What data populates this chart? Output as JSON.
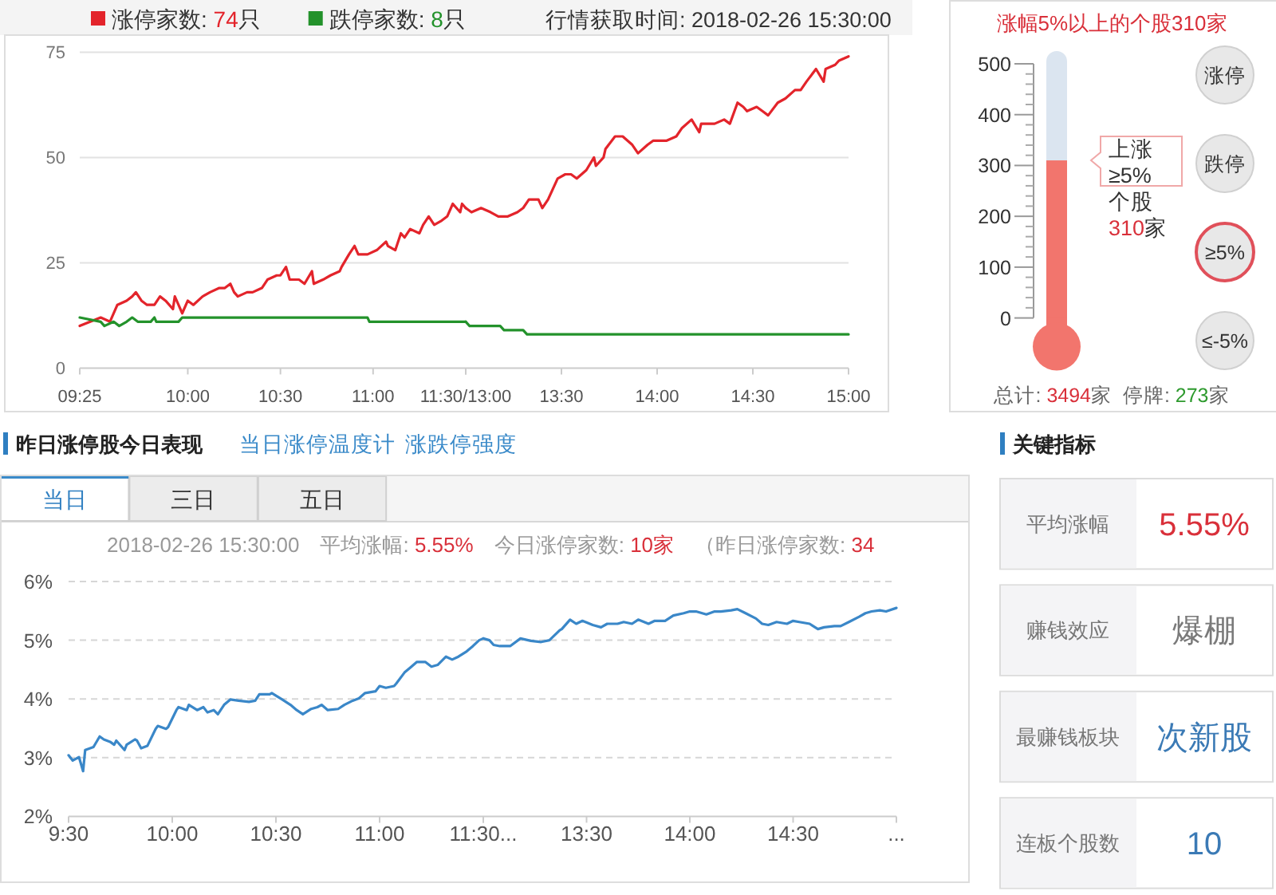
{
  "chart_data": [
    {
      "type": "line",
      "xlim": [
        9.417,
        11.5
      ],
      "xticks": [
        {
          "value": 9.417,
          "label": "09:25"
        },
        {
          "value": 10,
          "label": "10:00"
        },
        {
          "value": 10.5,
          "label": "10:30"
        },
        {
          "value": 11,
          "label": "11:00"
        },
        {
          "value": 11.5,
          "label": "11:30/13:00"
        }
      ],
      "ylim": [
        0,
        75
      ],
      "yticks": [
        0,
        25,
        50,
        75
      ],
      "grid": "y",
      "legend": "top",
      "series": [
        {
          "name": "涨停家数: 74只",
          "color": "#e3242b",
          "x": [
            9.417,
            9.53,
            9.58,
            9.62,
            9.67,
            9.7,
            9.72,
            9.75,
            9.78,
            9.82,
            9.85,
            9.88,
            9.92,
            9.93,
            9.95,
            9.97,
            10.0,
            10.03,
            10.08,
            10.12,
            10.17,
            10.2,
            10.23,
            10.25,
            10.27,
            10.32,
            10.35,
            10.4,
            10.43,
            10.48,
            10.5,
            10.53,
            10.55,
            10.6,
            10.63,
            10.67,
            10.68,
            10.73,
            10.77,
            10.82,
            10.83,
            10.87,
            10.9,
            10.92,
            10.97,
            11.02,
            11.07,
            11.08,
            11.12,
            11.15,
            11.17,
            11.2,
            11.25,
            11.27,
            11.3,
            11.33,
            11.37,
            11.4,
            11.43,
            11.47,
            11.48,
            11.5
          ],
          "values": [
            10,
            12,
            11,
            15,
            16,
            17,
            18,
            16,
            15,
            15,
            17,
            16,
            14,
            17,
            15,
            13,
            16,
            15,
            17,
            18,
            19,
            19,
            20,
            18,
            17,
            18,
            18,
            19,
            21,
            22,
            22,
            24,
            21,
            21,
            20,
            23,
            20,
            21,
            22,
            23,
            24,
            27,
            29,
            27,
            27,
            28,
            30,
            29,
            28,
            32,
            31,
            33,
            32,
            34,
            36,
            34,
            35,
            36,
            39,
            37,
            39,
            38
          ]
        },
        {
          "name": "跌停家数: 8只",
          "color": "#23922b",
          "x": [
            9.417,
            9.53,
            9.55,
            9.6,
            9.63,
            9.67,
            9.7,
            9.73,
            9.8,
            9.82,
            9.83,
            9.95,
            9.97,
            10.97,
            10.98,
            11.5
          ],
          "values": [
            12,
            11,
            10,
            11,
            10,
            11,
            12,
            11,
            11,
            12,
            11,
            11,
            12,
            12,
            11,
            11
          ]
        }
      ]
    },
    {
      "type": "line",
      "subtitle": "行情获取时间: 2018-02-26 15:30:00",
      "xlim": [
        13,
        15
      ],
      "xticks": [
        {
          "value": 13,
          "label": null
        },
        {
          "value": 13.5,
          "label": "13:30"
        },
        {
          "value": 14,
          "label": "14:00"
        },
        {
          "value": 14.5,
          "label": "14:30"
        },
        {
          "value": 15,
          "label": "15:00"
        }
      ],
      "ylim": [
        0,
        75
      ],
      "yticks": [
        0,
        25,
        50,
        75
      ],
      "tick_labels": "x",
      "grid": "y",
      "series": [
        {
          "color": "#e3242b",
          "x": [
            13.0,
            13.03,
            13.08,
            13.13,
            13.17,
            13.22,
            13.27,
            13.3,
            13.33,
            13.38,
            13.4,
            13.43,
            13.48,
            13.52,
            13.55,
            13.58,
            13.63,
            13.67,
            13.68,
            13.72,
            13.73,
            13.78,
            13.82,
            13.87,
            13.9,
            13.95,
            13.98,
            14.05,
            14.1,
            14.13,
            14.18,
            14.22,
            14.23,
            14.3,
            14.35,
            14.38,
            14.42,
            14.45,
            14.47,
            14.52,
            14.55,
            14.58,
            14.63,
            14.67,
            14.72,
            14.75,
            14.78,
            14.83,
            14.87,
            14.88,
            14.93,
            14.95,
            15.0
          ],
          "values": [
            38,
            37,
            38,
            37,
            36,
            36,
            37,
            38,
            40,
            40,
            38,
            40,
            45,
            46,
            46,
            45,
            47,
            50,
            48,
            50,
            52,
            55,
            55,
            53,
            51,
            53,
            54,
            54,
            55,
            57,
            59,
            56,
            58,
            58,
            59,
            58,
            63,
            62,
            61,
            62,
            61,
            60,
            63,
            64,
            66,
            66,
            68,
            71,
            68,
            71,
            72,
            73,
            74
          ]
        },
        {
          "color": "#23922b",
          "x": [
            13.0,
            13.02,
            13.18,
            13.2,
            13.3,
            13.32,
            15.0
          ],
          "values": [
            11,
            10,
            10,
            9,
            9,
            8,
            8
          ]
        }
      ]
    },
    {
      "type": "bar",
      "title": "涨幅5%以上的个股310家",
      "categories": [
        null
      ],
      "values": [
        310
      ],
      "color": "#f2756d",
      "ylim": [
        0,
        500
      ],
      "yticks": [
        0,
        100,
        200,
        300,
        400,
        500
      ],
      "annotations": [
        "上涨\n≥5%\n个股\n310家",
        "涨停",
        "跌停",
        "≥5%",
        "≤-5%",
        "总计: 3494家  停牌: 273家"
      ]
    },
    {
      "type": "line",
      "title": "昨日涨停股今日表现",
      "subtitle": "2018-02-26 15:30:00　平均涨幅: 5.55%　今日涨停家数: 10家　（昨日涨停家数: 34",
      "annotations": [
        "当日涨停温度计",
        "涨跌停强度",
        "当日",
        "三日",
        "五日"
      ],
      "xlim": [
        9.5,
        11.5
      ],
      "xticks": [
        {
          "value": 9.5,
          "label": "9:30"
        },
        {
          "value": 10,
          "label": "10:00"
        },
        {
          "value": 10.5,
          "label": "10:30"
        },
        {
          "value": 11,
          "label": "11:00"
        },
        {
          "value": 11.5,
          "label": "11:30..."
        }
      ],
      "ylim": [
        2,
        6
      ],
      "yticks": [
        {
          "value": 2,
          "label": "2%"
        },
        {
          "value": 3,
          "label": "3%"
        },
        {
          "value": 4,
          "label": "4%"
        },
        {
          "value": 5,
          "label": "5%"
        },
        {
          "value": 6,
          "label": "6%"
        }
      ],
      "grid": "y",
      "series": [
        {
          "color": "#3a87c8",
          "x": [
            9.5,
            9.52,
            9.55,
            9.57,
            9.58,
            9.62,
            9.65,
            9.67,
            9.7,
            9.72,
            9.73,
            9.77,
            9.78,
            9.82,
            9.83,
            9.85,
            9.88,
            9.92,
            9.93,
            9.97,
            9.98,
            10.02,
            10.03,
            10.07,
            10.08,
            10.12,
            10.15,
            10.17,
            10.2,
            10.22,
            10.25,
            10.28,
            10.32,
            10.37,
            10.4,
            10.42,
            10.47,
            10.48,
            10.53,
            10.57,
            10.6,
            10.63,
            10.67,
            10.7,
            10.72,
            10.75,
            10.8,
            10.83,
            10.87,
            10.9,
            10.93,
            10.98,
            11.0,
            11.03,
            11.07,
            11.08,
            11.12,
            11.15,
            11.18,
            11.22,
            11.25,
            11.28,
            11.32,
            11.35,
            11.38,
            11.42,
            11.45,
            11.48,
            11.5
          ],
          "values": [
            3.04,
            2.95,
            3.01,
            2.77,
            3.13,
            3.18,
            3.36,
            3.31,
            3.27,
            3.22,
            3.29,
            3.13,
            3.22,
            3.31,
            3.29,
            3.16,
            3.2,
            3.49,
            3.54,
            3.49,
            3.52,
            3.81,
            3.86,
            3.81,
            3.9,
            3.81,
            3.86,
            3.77,
            3.81,
            3.74,
            3.9,
            3.99,
            3.97,
            3.95,
            3.97,
            4.08,
            4.08,
            4.1,
            3.99,
            3.9,
            3.81,
            3.74,
            3.83,
            3.86,
            3.9,
            3.81,
            3.83,
            3.9,
            3.97,
            4.01,
            4.1,
            4.13,
            4.22,
            4.19,
            4.22,
            4.26,
            4.45,
            4.54,
            4.63,
            4.63,
            4.55,
            4.58,
            4.72,
            4.67,
            4.72,
            4.81,
            4.9,
            5.0,
            5.03
          ]
        }
      ]
    },
    {
      "type": "line",
      "xlim": [
        13,
        15
      ],
      "xticks": [
        {
          "value": 13,
          "label": null
        },
        {
          "value": 13.5,
          "label": "13:30"
        },
        {
          "value": 14,
          "label": "14:00"
        },
        {
          "value": 14.5,
          "label": "14:30"
        },
        {
          "value": 15,
          "label": "..."
        }
      ],
      "ylim": [
        2,
        6
      ],
      "yticks": [
        2,
        3,
        4,
        5,
        6
      ],
      "tick_labels": "x",
      "grid": "y",
      "series": [
        {
          "color": "#3a87c8",
          "x": [
            13.0,
            13.03,
            13.05,
            13.08,
            13.13,
            13.18,
            13.23,
            13.28,
            13.32,
            13.37,
            13.38,
            13.42,
            13.45,
            13.48,
            13.53,
            13.57,
            13.6,
            13.65,
            13.68,
            13.72,
            13.75,
            13.8,
            13.83,
            13.88,
            13.92,
            13.97,
            14.0,
            14.03,
            14.08,
            14.12,
            14.15,
            14.2,
            14.23,
            14.27,
            14.32,
            14.35,
            14.38,
            14.42,
            14.47,
            14.5,
            14.53,
            14.58,
            14.62,
            14.65,
            14.7,
            14.73,
            14.77,
            14.82,
            14.85,
            14.88,
            14.92,
            14.95,
            15.0
          ],
          "values": [
            5.03,
            5.0,
            4.92,
            4.9,
            4.9,
            5.03,
            4.99,
            4.97,
            5.0,
            5.17,
            5.19,
            5.35,
            5.28,
            5.33,
            5.26,
            5.22,
            5.28,
            5.28,
            5.31,
            5.28,
            5.35,
            5.28,
            5.33,
            5.33,
            5.42,
            5.46,
            5.49,
            5.49,
            5.44,
            5.49,
            5.49,
            5.51,
            5.53,
            5.46,
            5.37,
            5.28,
            5.26,
            5.31,
            5.28,
            5.33,
            5.31,
            5.28,
            5.19,
            5.22,
            5.24,
            5.24,
            5.31,
            5.4,
            5.46,
            5.49,
            5.51,
            5.49,
            5.55
          ]
        }
      ]
    },
    {
      "type": "other",
      "title": "关键指标",
      "annotations": [
        "平均涨幅",
        "5.55%",
        "赚钱效应",
        "爆棚",
        "最赚钱板块",
        "次新股",
        "连板个股数",
        "10"
      ]
    }
  ]
}
